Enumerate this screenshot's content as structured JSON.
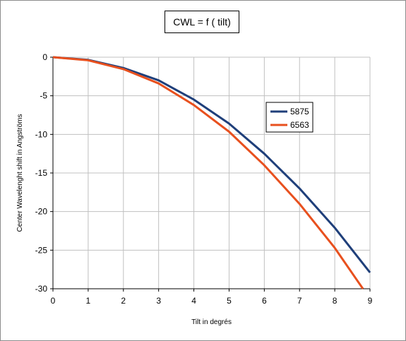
{
  "chart_data": {
    "type": "line",
    "title": "CWL = f ( tilt)",
    "xlabel": "Tilt in degrés",
    "ylabel": "Center Wavelenght shift in Angströms",
    "xlim": [
      0,
      9
    ],
    "ylim": [
      -30,
      0
    ],
    "xticks": [
      0,
      1,
      2,
      3,
      4,
      5,
      6,
      7,
      8,
      9
    ],
    "yticks": [
      0,
      -5,
      -10,
      -15,
      -20,
      -25,
      -30
    ],
    "grid": true,
    "legend_position": "right",
    "series": [
      {
        "name": "5875",
        "color": "#1f3f7a",
        "x": [
          0,
          1,
          2,
          3,
          4,
          5,
          6,
          7,
          8,
          9
        ],
        "y": [
          0,
          -0.35,
          -1.4,
          -3.0,
          -5.5,
          -8.6,
          -12.5,
          -17.0,
          -22.1,
          -27.9
        ]
      },
      {
        "name": "6563",
        "color": "#e8501e",
        "x": [
          0,
          1,
          2,
          3,
          4,
          5,
          6,
          7,
          8,
          8.8
        ],
        "y": [
          0,
          -0.4,
          -1.55,
          -3.4,
          -6.2,
          -9.65,
          -14.0,
          -19.0,
          -24.7,
          -30.0
        ]
      }
    ]
  }
}
